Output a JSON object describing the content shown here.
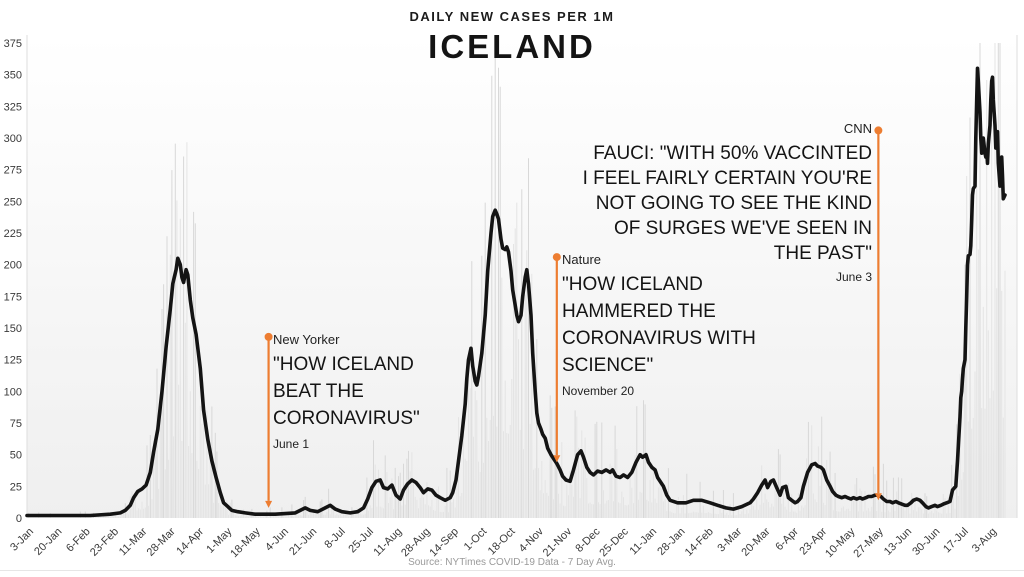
{
  "header": {
    "subtitle": "DAILY NEW CASES PER 1M",
    "title": "ICELAND"
  },
  "footer": {
    "source": "Source: NYTimes COVID-19 Data - 7 Day Avg."
  },
  "chart_data": {
    "type": "line",
    "title": "ICELAND",
    "subtitle": "DAILY NEW CASES PER 1M",
    "xlabel": "",
    "ylabel": "",
    "ylim": [
      0,
      375
    ],
    "yticks": [
      0,
      25,
      50,
      75,
      100,
      125,
      150,
      175,
      200,
      225,
      250,
      275,
      300,
      325,
      350,
      375
    ],
    "xticks": [
      "3-Jan",
      "20-Jan",
      "6-Feb",
      "23-Feb",
      "11-Mar",
      "28-Mar",
      "14-Apr",
      "1-May",
      "18-May",
      "4-Jun",
      "21-Jun",
      "8-Jul",
      "25-Jul",
      "11-Aug",
      "28-Aug",
      "14-Sep",
      "1-Oct",
      "18-Oct",
      "4-Nov",
      "21-Nov",
      "8-Dec",
      "25-Dec",
      "11-Jan",
      "28-Jan",
      "14-Feb",
      "3-Mar",
      "20-Mar",
      "6-Apr",
      "23-Apr",
      "10-May",
      "27-May",
      "13-Jun",
      "30-Jun",
      "17-Jul",
      "3-Aug"
    ],
    "days_per_tick": 17,
    "grid": false,
    "legend": false,
    "series": [
      {
        "name": "7 Day Avg",
        "points": [
          [
            0,
            2
          ],
          [
            20,
            2
          ],
          [
            38,
            2
          ],
          [
            50,
            3
          ],
          [
            56,
            4
          ],
          [
            59,
            6
          ],
          [
            62,
            10
          ],
          [
            64,
            16
          ],
          [
            66.5,
            21
          ],
          [
            69,
            23
          ],
          [
            71.5,
            26
          ],
          [
            74,
            36
          ],
          [
            76,
            52
          ],
          [
            78.5,
            70
          ],
          [
            81,
            100
          ],
          [
            83.5,
            135
          ],
          [
            86,
            165
          ],
          [
            87.5,
            185
          ],
          [
            89.5,
            196
          ],
          [
            90.5,
            205
          ],
          [
            92,
            200
          ],
          [
            93,
            190
          ],
          [
            94,
            186
          ],
          [
            95.5,
            196
          ],
          [
            96.5,
            192
          ],
          [
            98,
            172
          ],
          [
            99.5,
            158
          ],
          [
            101.5,
            145
          ],
          [
            104,
            118
          ],
          [
            106,
            85
          ],
          [
            108.5,
            62
          ],
          [
            111,
            45
          ],
          [
            113.5,
            32
          ],
          [
            116,
            20
          ],
          [
            118,
            12
          ],
          [
            120.5,
            9
          ],
          [
            123,
            6
          ],
          [
            126.5,
            5
          ],
          [
            131,
            4
          ],
          [
            137,
            3
          ],
          [
            149,
            3
          ],
          [
            161,
            4
          ],
          [
            164,
            6
          ],
          [
            167,
            8
          ],
          [
            170,
            6
          ],
          [
            174.5,
            5
          ],
          [
            179,
            8
          ],
          [
            182,
            10
          ],
          [
            185,
            7
          ],
          [
            189,
            5
          ],
          [
            194,
            4
          ],
          [
            198.5,
            5
          ],
          [
            202,
            8
          ],
          [
            204.5,
            15
          ],
          [
            207,
            24
          ],
          [
            209.5,
            29
          ],
          [
            212,
            30
          ],
          [
            214,
            24
          ],
          [
            216.5,
            23
          ],
          [
            219,
            26
          ],
          [
            221.5,
            18
          ],
          [
            224,
            15
          ],
          [
            226,
            22
          ],
          [
            228.5,
            27
          ],
          [
            231,
            30
          ],
          [
            233.5,
            28
          ],
          [
            236,
            24
          ],
          [
            238,
            20
          ],
          [
            240.5,
            23
          ],
          [
            243,
            22
          ],
          [
            245.5,
            18
          ],
          [
            248,
            16
          ],
          [
            251,
            14
          ],
          [
            254,
            16
          ],
          [
            255.5,
            20
          ],
          [
            257.5,
            30
          ],
          [
            259,
            45
          ],
          [
            261,
            65
          ],
          [
            263,
            90
          ],
          [
            264,
            110
          ],
          [
            265,
            125
          ],
          [
            266.5,
            134
          ],
          [
            267.5,
            120
          ],
          [
            269,
            108
          ],
          [
            270,
            105
          ],
          [
            271,
            112
          ],
          [
            273,
            130
          ],
          [
            275,
            160
          ],
          [
            276.5,
            195
          ],
          [
            278.5,
            225
          ],
          [
            279.5,
            238
          ],
          [
            281,
            243
          ],
          [
            282,
            240
          ],
          [
            283,
            236
          ],
          [
            284.5,
            220
          ],
          [
            285.5,
            213
          ],
          [
            287,
            212
          ],
          [
            288,
            214
          ],
          [
            289,
            210
          ],
          [
            290.5,
            195
          ],
          [
            291.5,
            180
          ],
          [
            293,
            168
          ],
          [
            294,
            160
          ],
          [
            295,
            155
          ],
          [
            296.5,
            160
          ],
          [
            297.5,
            175
          ],
          [
            299,
            190
          ],
          [
            300,
            196
          ],
          [
            301,
            185
          ],
          [
            302.5,
            160
          ],
          [
            303.5,
            130
          ],
          [
            305,
            100
          ],
          [
            306,
            83
          ],
          [
            307,
            75
          ],
          [
            308.5,
            70
          ],
          [
            309.5,
            66
          ],
          [
            311,
            63
          ],
          [
            312.5,
            55
          ],
          [
            314.5,
            50
          ],
          [
            316,
            47
          ],
          [
            318,
            43
          ],
          [
            320,
            38
          ],
          [
            321.5,
            33
          ],
          [
            323.5,
            30
          ],
          [
            326,
            29
          ],
          [
            328,
            38
          ],
          [
            330.5,
            50
          ],
          [
            332.5,
            53
          ],
          [
            334,
            48
          ],
          [
            336,
            40
          ],
          [
            338,
            36
          ],
          [
            340,
            34
          ],
          [
            342.5,
            37
          ],
          [
            345,
            36
          ],
          [
            347.5,
            38
          ],
          [
            350,
            36
          ],
          [
            351.5,
            38
          ],
          [
            353.5,
            33
          ],
          [
            356,
            32
          ],
          [
            358,
            34
          ],
          [
            360.5,
            32
          ],
          [
            363,
            36
          ],
          [
            365.5,
            44
          ],
          [
            368,
            50
          ],
          [
            369.5,
            48
          ],
          [
            371.5,
            50
          ],
          [
            373,
            44
          ],
          [
            375,
            40
          ],
          [
            377,
            38
          ],
          [
            378.5,
            32
          ],
          [
            380.5,
            28
          ],
          [
            382,
            25
          ],
          [
            384,
            18
          ],
          [
            386,
            14
          ],
          [
            390.5,
            12
          ],
          [
            395.5,
            12
          ],
          [
            400,
            14
          ],
          [
            405,
            14
          ],
          [
            410,
            12
          ],
          [
            414.5,
            10
          ],
          [
            419.5,
            8
          ],
          [
            424,
            7
          ],
          [
            429,
            9
          ],
          [
            434,
            12
          ],
          [
            436,
            15
          ],
          [
            438.5,
            20
          ],
          [
            441,
            26
          ],
          [
            443,
            30
          ],
          [
            444.5,
            24
          ],
          [
            446.5,
            29
          ],
          [
            448,
            30
          ],
          [
            450,
            24
          ],
          [
            452,
            18
          ],
          [
            453.5,
            24
          ],
          [
            455.5,
            25
          ],
          [
            457,
            16
          ],
          [
            459,
            14
          ],
          [
            461,
            12
          ],
          [
            462.5,
            13
          ],
          [
            464.5,
            16
          ],
          [
            466,
            25
          ],
          [
            468.5,
            36
          ],
          [
            471,
            42
          ],
          [
            473,
            43
          ],
          [
            474.5,
            41
          ],
          [
            476.5,
            40
          ],
          [
            478,
            38
          ],
          [
            480,
            30
          ],
          [
            482,
            25
          ],
          [
            483.5,
            21
          ],
          [
            485.5,
            18
          ],
          [
            487,
            17
          ],
          [
            489,
            16
          ],
          [
            491,
            17
          ],
          [
            492.5,
            16
          ],
          [
            494.5,
            15
          ],
          [
            496,
            16
          ],
          [
            498,
            15
          ],
          [
            500,
            16
          ],
          [
            501.5,
            15
          ],
          [
            503.5,
            16
          ],
          [
            505,
            17
          ],
          [
            507,
            17
          ],
          [
            509,
            18
          ],
          [
            510.5,
            18
          ],
          [
            512.5,
            17
          ],
          [
            514,
            15
          ],
          [
            516,
            13
          ],
          [
            518,
            13
          ],
          [
            519.5,
            12
          ],
          [
            521.5,
            13
          ],
          [
            523,
            12
          ],
          [
            525,
            11
          ],
          [
            527,
            10
          ],
          [
            528.5,
            10
          ],
          [
            530.5,
            12
          ],
          [
            532,
            14
          ],
          [
            534,
            15
          ],
          [
            536,
            14
          ],
          [
            537.5,
            12
          ],
          [
            539.5,
            9
          ],
          [
            541,
            8
          ],
          [
            543,
            9
          ],
          [
            545,
            10
          ],
          [
            546.5,
            9
          ],
          [
            548.5,
            10
          ],
          [
            550,
            11
          ],
          [
            552,
            12
          ],
          [
            554,
            13
          ],
          [
            555.5,
            22
          ],
          [
            557.5,
            25
          ],
          [
            558.5,
            45
          ],
          [
            560,
            80
          ],
          [
            560.5,
            95
          ],
          [
            561,
            100
          ],
          [
            561.5,
            110
          ],
          [
            562,
            118
          ],
          [
            563,
            125
          ],
          [
            563.5,
            150
          ],
          [
            564,
            175
          ],
          [
            564.5,
            200
          ],
          [
            565,
            207
          ],
          [
            566,
            208
          ],
          [
            566.5,
            215
          ],
          [
            567,
            235
          ],
          [
            567.5,
            255
          ],
          [
            568,
            260
          ],
          [
            569,
            262
          ],
          [
            569.5,
            300
          ],
          [
            570,
            330
          ],
          [
            570.5,
            355
          ],
          [
            571,
            345
          ],
          [
            572,
            320
          ],
          [
            572.5,
            300
          ],
          [
            573,
            288
          ],
          [
            573.5,
            295
          ],
          [
            574,
            300
          ],
          [
            575,
            288
          ],
          [
            575.5,
            285
          ],
          [
            576,
            290
          ],
          [
            576.5,
            280
          ],
          [
            577,
            295
          ],
          [
            578,
            310
          ],
          [
            578.5,
            330
          ],
          [
            579,
            345
          ],
          [
            579.5,
            348
          ],
          [
            580,
            330
          ],
          [
            581,
            310
          ],
          [
            581.5,
            292
          ],
          [
            582,
            300
          ],
          [
            582.5,
            305
          ],
          [
            583,
            280
          ],
          [
            584,
            262
          ],
          [
            584.5,
            270
          ],
          [
            585,
            285
          ],
          [
            585.5,
            270
          ],
          [
            586,
            252
          ],
          [
            587,
            255
          ]
        ]
      }
    ],
    "daily_bars": {
      "visible": true,
      "note": "light gray raw daily values behind the 7-day average"
    },
    "annotations": [
      {
        "source": "New Yorker",
        "quote": "\"HOW ICELAND\nBEAT THE\nCORONAVIRUS\"",
        "date": "June 1",
        "day": 145,
        "line_top_value": 143,
        "line_bottom_value": 8,
        "align": "left"
      },
      {
        "source": "Nature",
        "quote": "\"HOW ICELAND\nHAMMERED THE\nCORONAVIRUS WITH\nSCIENCE\"",
        "date": "November 20",
        "day": 318,
        "line_top_value": 206,
        "line_bottom_value": 44,
        "align": "left"
      },
      {
        "source": "CNN",
        "quote": "FAUCI: \"WITH 50% VACCINTED\nI FEEL FAIRLY CERTAIN YOU'RE\nNOT GOING TO SEE THE KIND\nOF SURGES WE'VE SEEN IN\nTHE PAST\"",
        "date": "June 3",
        "day": 511,
        "line_top_value": 306,
        "line_bottom_value": 14,
        "align": "right"
      }
    ],
    "colors": {
      "line": "#141414",
      "annotation": "#ED7D31",
      "bars": "#e4e4e4",
      "bars_dark": "#d8d8d8",
      "axis_text": "#3a3a3a",
      "plot_border": "#dedede"
    }
  }
}
